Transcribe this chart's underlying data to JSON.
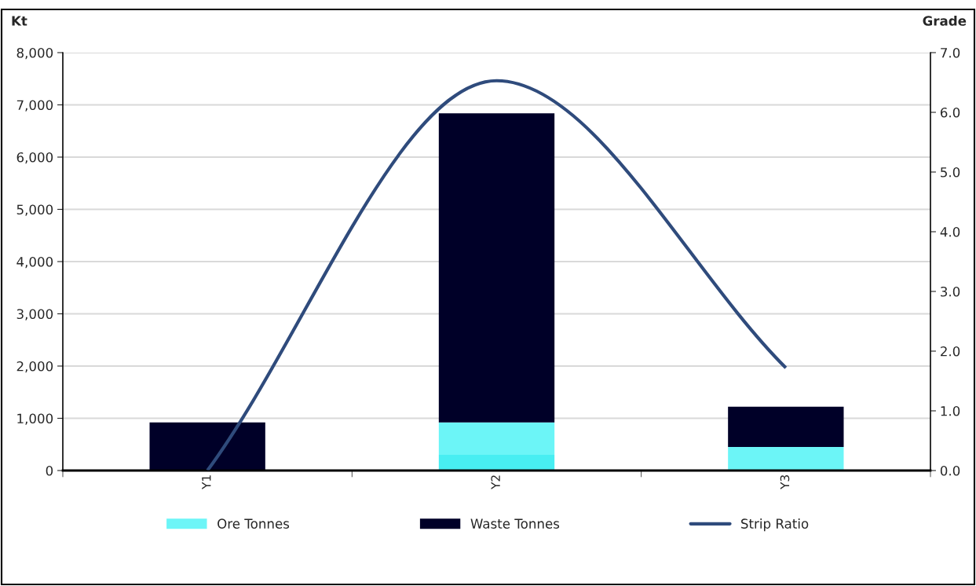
{
  "chart_data": {
    "type": "bar",
    "stacked": true,
    "ylabel": "Kt",
    "y2label": "Grade",
    "categories": [
      "Y1",
      "Y2",
      "Y3"
    ],
    "series": [
      {
        "color": "#48eef2",
        "values": [
          null,
          300,
          null
        ]
      },
      {
        "name": "Ore Tonnes",
        "color": "#6cf5f7",
        "values": [
          null,
          620,
          450
        ]
      },
      {
        "name": "Waste Tonnes",
        "color": "#000028",
        "values": [
          920,
          5920,
          770
        ]
      },
      {
        "name": "Strip Ratio",
        "type": "line",
        "axis": "y2",
        "color": "#2f4b7c",
        "values": [
          0.0,
          6.53,
          1.72
        ]
      }
    ],
    "ylim": [
      0,
      8000
    ],
    "yticks": [
      {
        "value": 0,
        "label": "0"
      },
      {
        "value": 1000,
        "label": "1,000"
      },
      {
        "value": 2000,
        "label": "2,000"
      },
      {
        "value": 3000,
        "label": "3,000"
      },
      {
        "value": 4000,
        "label": "4,000"
      },
      {
        "value": 5000,
        "label": "5,000"
      },
      {
        "value": 6000,
        "label": "6,000"
      },
      {
        "value": 7000,
        "label": "7,000"
      },
      {
        "value": 8000,
        "label": "8,000"
      }
    ],
    "y2lim": [
      0,
      7
    ],
    "y2ticks": [
      {
        "value": 0,
        "label": "0.0"
      },
      {
        "value": 1,
        "label": "1.0"
      },
      {
        "value": 2,
        "label": "2.0"
      },
      {
        "value": 3,
        "label": "3.0"
      },
      {
        "value": 4,
        "label": "4.0"
      },
      {
        "value": 5,
        "label": "5.0"
      },
      {
        "value": 6,
        "label": "6.0"
      },
      {
        "value": 7,
        "label": "7.0"
      }
    ],
    "grid": "y",
    "legend": "bottom",
    "line_style": "solid",
    "marker": "none"
  }
}
